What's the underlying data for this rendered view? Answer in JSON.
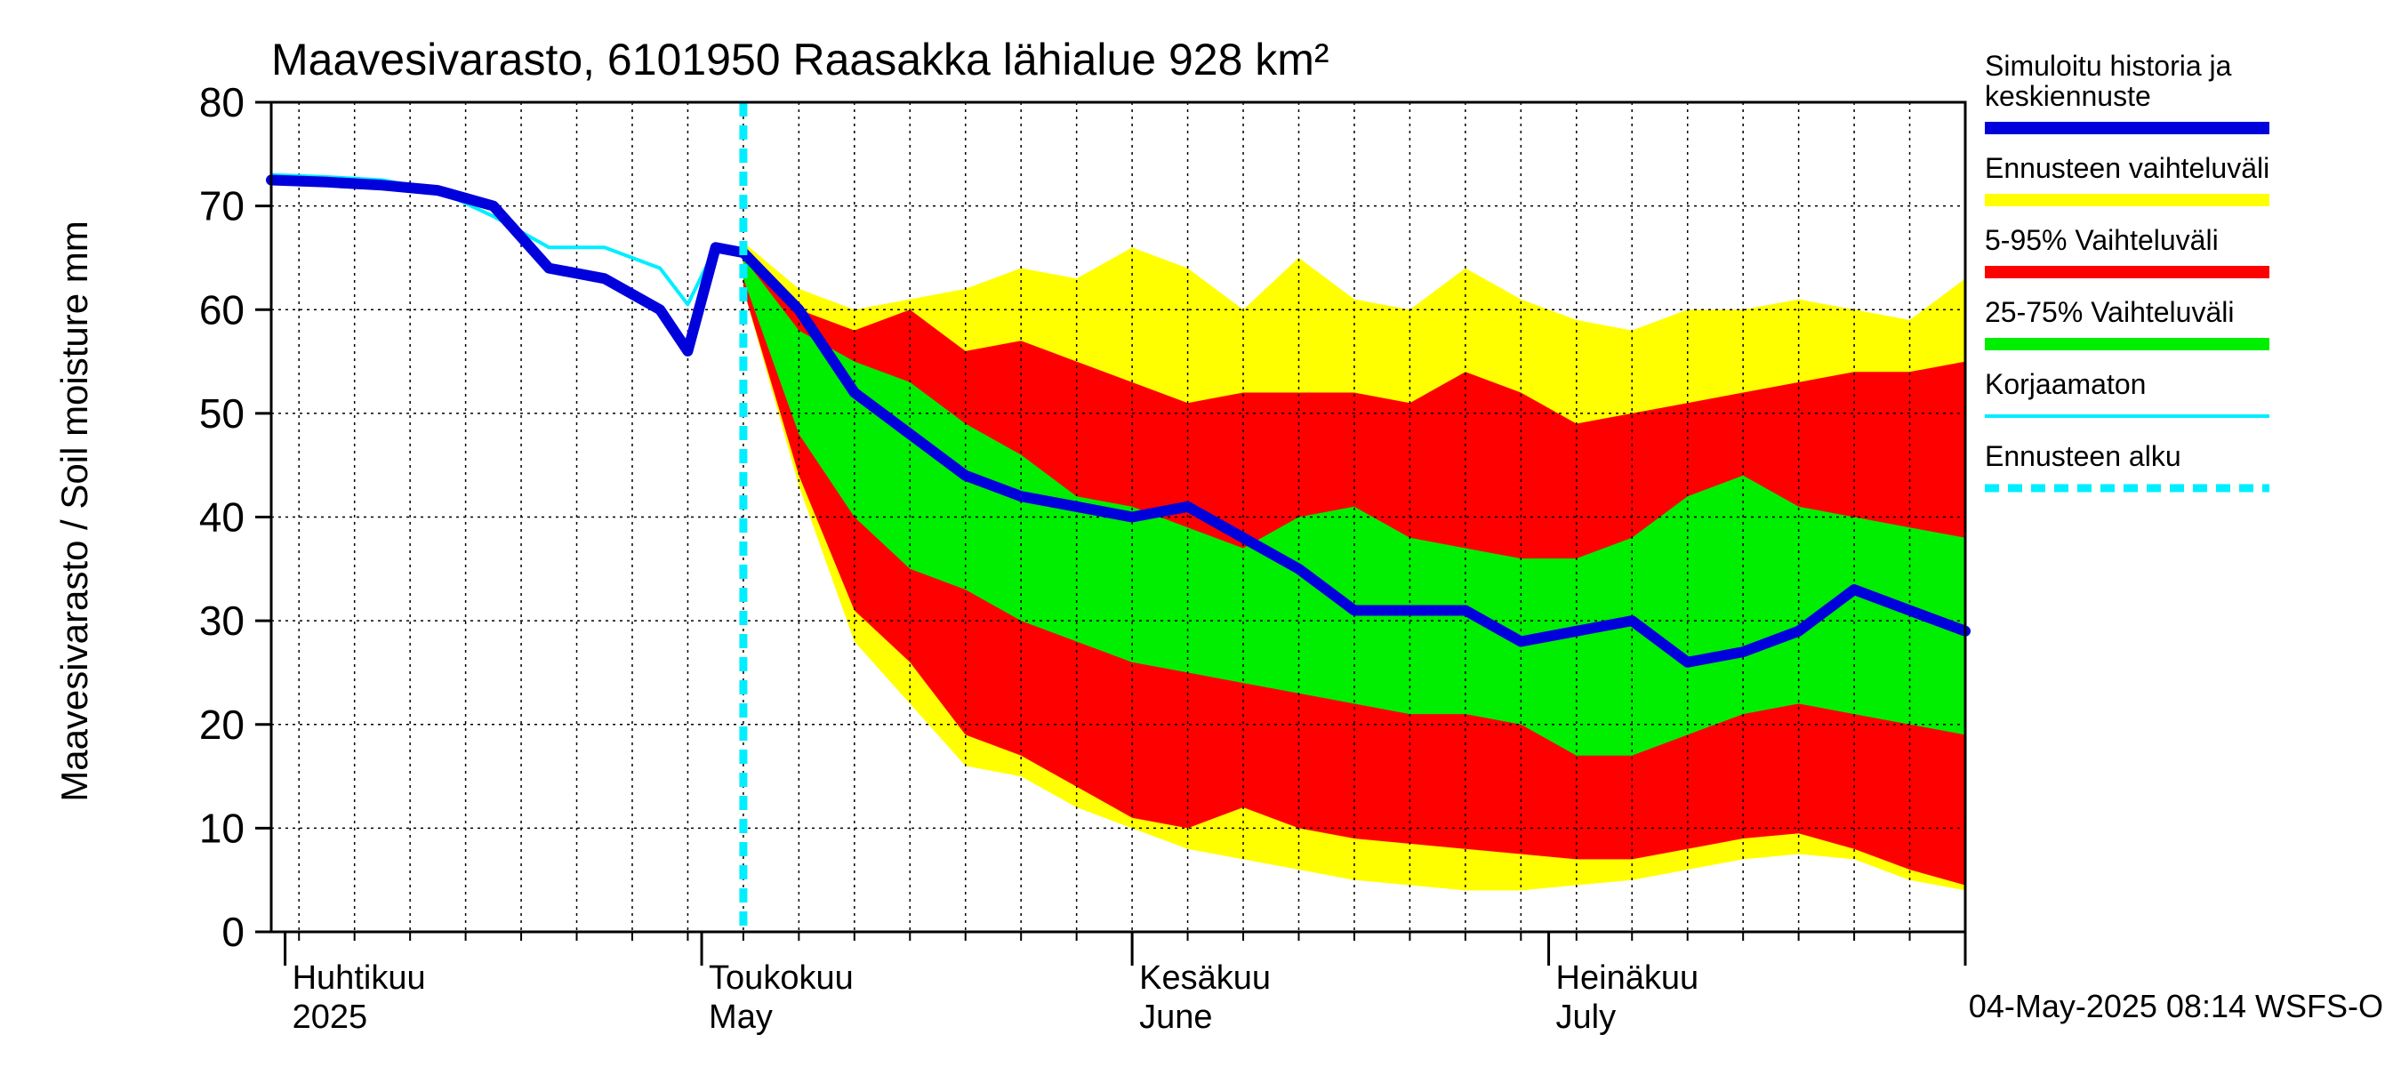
{
  "chart_data": {
    "type": "area",
    "title": "Maavesivarasto, 6101950 Raasakka lähialue 928 km²",
    "ylabel": "Maavesivarasto / Soil moisture   mm",
    "ylim": [
      0,
      80
    ],
    "y_ticks": [
      "0",
      "10",
      "20",
      "30",
      "40",
      "50",
      "60",
      "70",
      "80"
    ],
    "xlim": [
      "2025-03-31",
      "2025-07-31"
    ],
    "x_month_labels": [
      {
        "date": "2025-04-01",
        "fi": "Huhtikuu",
        "en": "2025"
      },
      {
        "date": "2025-05-01",
        "fi": "Toukokuu",
        "en": "May"
      },
      {
        "date": "2025-06-01",
        "fi": "Kesäkuu",
        "en": "June"
      },
      {
        "date": "2025-07-01",
        "fi": "Heinäkuu",
        "en": "July"
      }
    ],
    "forecast_start": "2025-05-04",
    "footer": "04-May-2025 08:14 WSFS-O",
    "legend_position": "right",
    "legend": [
      {
        "label": "Simuloitu historia ja keskiennuste",
        "color": "#0000dd",
        "style": "thick"
      },
      {
        "label": "Ennusteen vaihteluväli",
        "color": "#ffff00",
        "style": "thick"
      },
      {
        "label": "5-95% Vaihteluväli",
        "color": "#ff0000",
        "style": "thick"
      },
      {
        "label": "25-75% Vaihteluväli",
        "color": "#00ee00",
        "style": "thick"
      },
      {
        "label": "Korjaamaton",
        "color": "#00eeff",
        "style": "thin"
      },
      {
        "label": "Ennusteen alku",
        "color": "#00eeff",
        "style": "dashed"
      }
    ],
    "bands": {
      "x": [
        "2025-05-04",
        "2025-05-08",
        "2025-05-12",
        "2025-05-16",
        "2025-05-20",
        "2025-05-24",
        "2025-05-28",
        "2025-06-01",
        "2025-06-05",
        "2025-06-09",
        "2025-06-13",
        "2025-06-17",
        "2025-06-21",
        "2025-06-25",
        "2025-06-29",
        "2025-07-03",
        "2025-07-07",
        "2025-07-11",
        "2025-07-15",
        "2025-07-19",
        "2025-07-23",
        "2025-07-27",
        "2025-07-31"
      ],
      "ens_max": [
        66.5,
        62,
        60,
        61,
        62,
        64,
        63,
        66,
        64,
        60,
        65,
        61,
        60,
        64,
        61,
        59,
        58,
        60,
        60,
        61,
        60,
        59,
        63
      ],
      "p95": [
        66,
        60,
        58,
        60,
        56,
        57,
        55,
        53,
        51,
        52,
        52,
        52,
        51,
        54,
        52,
        49,
        50,
        51,
        52,
        53,
        54,
        54,
        55
      ],
      "p75": [
        65,
        58,
        55,
        53,
        49,
        46,
        42,
        41,
        39,
        37,
        40,
        41,
        38,
        37,
        36,
        36,
        38,
        42,
        44,
        41,
        40,
        39,
        38
      ],
      "p25": [
        63,
        48,
        40,
        35,
        33,
        30,
        28,
        26,
        25,
        24,
        23,
        22,
        21,
        21,
        20,
        17,
        17,
        19,
        21,
        22,
        21,
        20,
        19
      ],
      "p5": [
        62,
        44,
        31,
        26,
        19,
        17,
        14,
        11,
        10,
        12,
        10,
        9,
        8.5,
        8,
        7.5,
        7,
        7,
        8,
        9,
        9.5,
        8,
        6,
        4.5
      ],
      "ens_min": [
        62,
        43,
        28,
        22,
        16,
        15,
        12,
        10,
        8,
        7,
        6,
        5,
        4.5,
        4,
        4,
        4.5,
        5,
        6,
        7,
        7.5,
        7,
        5,
        4
      ]
    },
    "series": [
      {
        "name": "Simuloitu historia ja keskiennuste",
        "x": [
          "2025-03-31",
          "2025-04-04",
          "2025-04-08",
          "2025-04-12",
          "2025-04-16",
          "2025-04-20",
          "2025-04-24",
          "2025-04-28",
          "2025-04-30",
          "2025-05-02",
          "2025-05-04",
          "2025-05-08",
          "2025-05-12",
          "2025-05-16",
          "2025-05-20",
          "2025-05-24",
          "2025-05-28",
          "2025-06-01",
          "2025-06-05",
          "2025-06-09",
          "2025-06-13",
          "2025-06-17",
          "2025-06-21",
          "2025-06-25",
          "2025-06-29",
          "2025-07-03",
          "2025-07-07",
          "2025-07-11",
          "2025-07-15",
          "2025-07-19",
          "2025-07-23",
          "2025-07-27",
          "2025-07-31"
        ],
        "y": [
          72.5,
          72.3,
          72,
          71.5,
          70,
          64,
          63,
          60,
          56,
          66,
          65.5,
          60,
          52,
          48,
          44,
          42,
          41,
          40,
          41,
          38,
          35,
          31,
          31,
          31,
          28,
          29,
          30,
          26,
          27,
          29,
          33,
          31,
          29
        ]
      },
      {
        "name": "Korjaamaton",
        "x": [
          "2025-03-31",
          "2025-04-04",
          "2025-04-08",
          "2025-04-12",
          "2025-04-16",
          "2025-04-20",
          "2025-04-24",
          "2025-04-28",
          "2025-04-30",
          "2025-05-02",
          "2025-05-04"
        ],
        "y": [
          73,
          72.8,
          72.5,
          71.5,
          69,
          66,
          66,
          64,
          60.5,
          66,
          65.5
        ]
      }
    ]
  }
}
